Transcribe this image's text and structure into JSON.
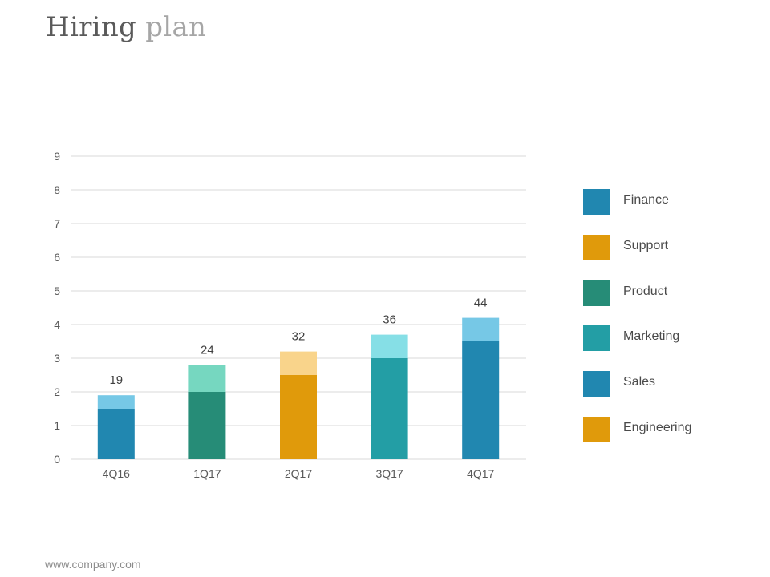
{
  "header": {
    "title_main": "Hiring",
    "title_accent": "plan"
  },
  "footer": {
    "url": "www.company.com"
  },
  "colors": {
    "finance": "#2187b0",
    "support": "#e09a0b",
    "product": "#268c77",
    "marketing": "#239ea5",
    "sales": "#2187b0",
    "engineering": "#e09a0b",
    "grid": "#d9d9d9",
    "tick_text": "#595959",
    "total_text": "#404040"
  },
  "chart_data": {
    "type": "bar",
    "stacked": true,
    "title": "",
    "xlabel": "",
    "ylabel": "",
    "ylim": [
      0,
      9
    ],
    "yticks": [
      0,
      1,
      2,
      3,
      4,
      5,
      6,
      7,
      8,
      9
    ],
    "grid": true,
    "legend_position": "right",
    "categories": [
      "4Q16",
      "1Q17",
      "2Q17",
      "3Q17",
      "4Q17"
    ],
    "totals": [
      "19",
      "24",
      "32",
      "36",
      "44"
    ],
    "bars": [
      {
        "category": "4Q16",
        "bottom": 1.5,
        "top": 1.9,
        "bottom_color": "#2187b0",
        "top_color": "#76c8e6"
      },
      {
        "category": "1Q17",
        "bottom": 2.0,
        "top": 2.8,
        "bottom_color": "#268c77",
        "top_color": "#76d7c0"
      },
      {
        "category": "2Q17",
        "bottom": 2.5,
        "top": 3.2,
        "bottom_color": "#e09a0b",
        "top_color": "#f9d48b"
      },
      {
        "category": "3Q17",
        "bottom": 3.0,
        "top": 3.7,
        "bottom_color": "#239ea5",
        "top_color": "#86dfe6"
      },
      {
        "category": "4Q17",
        "bottom": 3.5,
        "top": 4.2,
        "bottom_color": "#2187b0",
        "top_color": "#76c8e6"
      }
    ],
    "legend": [
      {
        "name": "Finance",
        "color": "#2187b0"
      },
      {
        "name": "Support",
        "color": "#e09a0b"
      },
      {
        "name": "Product",
        "color": "#268c77"
      },
      {
        "name": "Marketing",
        "color": "#239ea5"
      },
      {
        "name": "Sales",
        "color": "#2187b0"
      },
      {
        "name": "Engineering",
        "color": "#e09a0b"
      }
    ]
  }
}
